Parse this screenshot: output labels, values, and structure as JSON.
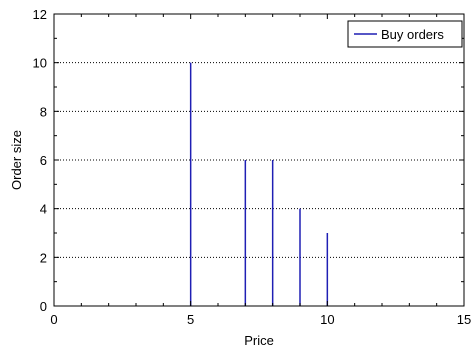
{
  "chart_data": {
    "type": "bar",
    "mark": "stem",
    "title": "",
    "xlabel": "Price",
    "ylabel": "Order size",
    "xlim": [
      0,
      15
    ],
    "ylim": [
      0,
      12
    ],
    "xticks": [
      0,
      5,
      10,
      15
    ],
    "yticks": [
      0,
      2,
      4,
      6,
      8,
      10,
      12
    ],
    "grid": "horizontal-dotted",
    "legend_position": "top-right",
    "series": [
      {
        "name": "Buy orders",
        "color": "#1f1fb4",
        "x": [
          5,
          7,
          8,
          9,
          10
        ],
        "values": [
          10,
          6,
          6,
          4,
          3
        ]
      }
    ]
  }
}
